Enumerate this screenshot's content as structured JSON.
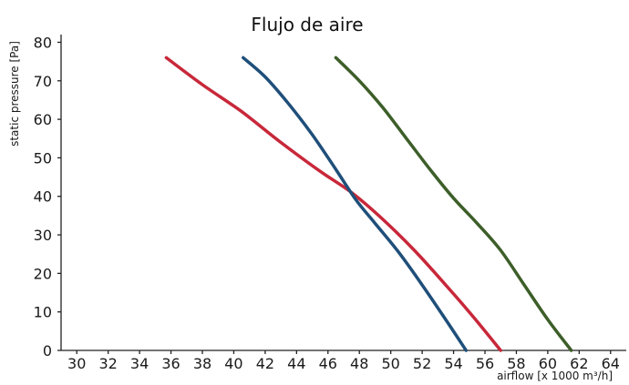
{
  "chart_data": {
    "type": "line",
    "title": "Flujo de aire",
    "xlabel": "airflow [x 1000 m³/h]",
    "ylabel": "static pressure [Pa]",
    "xlim": [
      29,
      65
    ],
    "ylim": [
      0,
      82
    ],
    "xticks": [
      30,
      32,
      34,
      36,
      38,
      40,
      42,
      44,
      46,
      48,
      50,
      52,
      54,
      56,
      58,
      60,
      62,
      64
    ],
    "yticks": [
      0,
      10,
      20,
      30,
      40,
      50,
      60,
      70,
      80
    ],
    "grid": false,
    "legend": "none",
    "series": [
      {
        "color": "#c8283a",
        "points": [
          [
            35.7,
            76
          ],
          [
            38,
            69
          ],
          [
            40.5,
            62
          ],
          [
            43,
            54
          ],
          [
            45.5,
            46.5
          ],
          [
            47.5,
            41
          ],
          [
            49.5,
            34
          ],
          [
            51.5,
            26
          ],
          [
            53.5,
            17
          ],
          [
            55.3,
            8.5
          ],
          [
            57,
            0
          ]
        ]
      },
      {
        "color": "#1f4f7a",
        "points": [
          [
            40.6,
            76
          ],
          [
            42,
            71
          ],
          [
            43.5,
            64
          ],
          [
            45,
            56
          ],
          [
            46.5,
            47
          ],
          [
            47.8,
            39
          ],
          [
            49,
            33
          ],
          [
            50.5,
            25.5
          ],
          [
            52,
            17
          ],
          [
            53.5,
            8
          ],
          [
            54.8,
            0
          ]
        ]
      },
      {
        "color": "#3d5e29",
        "points": [
          [
            46.5,
            76
          ],
          [
            48,
            70
          ],
          [
            49.5,
            63
          ],
          [
            51,
            55
          ],
          [
            52.5,
            47
          ],
          [
            54,
            39.5
          ],
          [
            55.5,
            33
          ],
          [
            57,
            26
          ],
          [
            58.5,
            17
          ],
          [
            60,
            8
          ],
          [
            61.5,
            0
          ]
        ]
      }
    ]
  }
}
